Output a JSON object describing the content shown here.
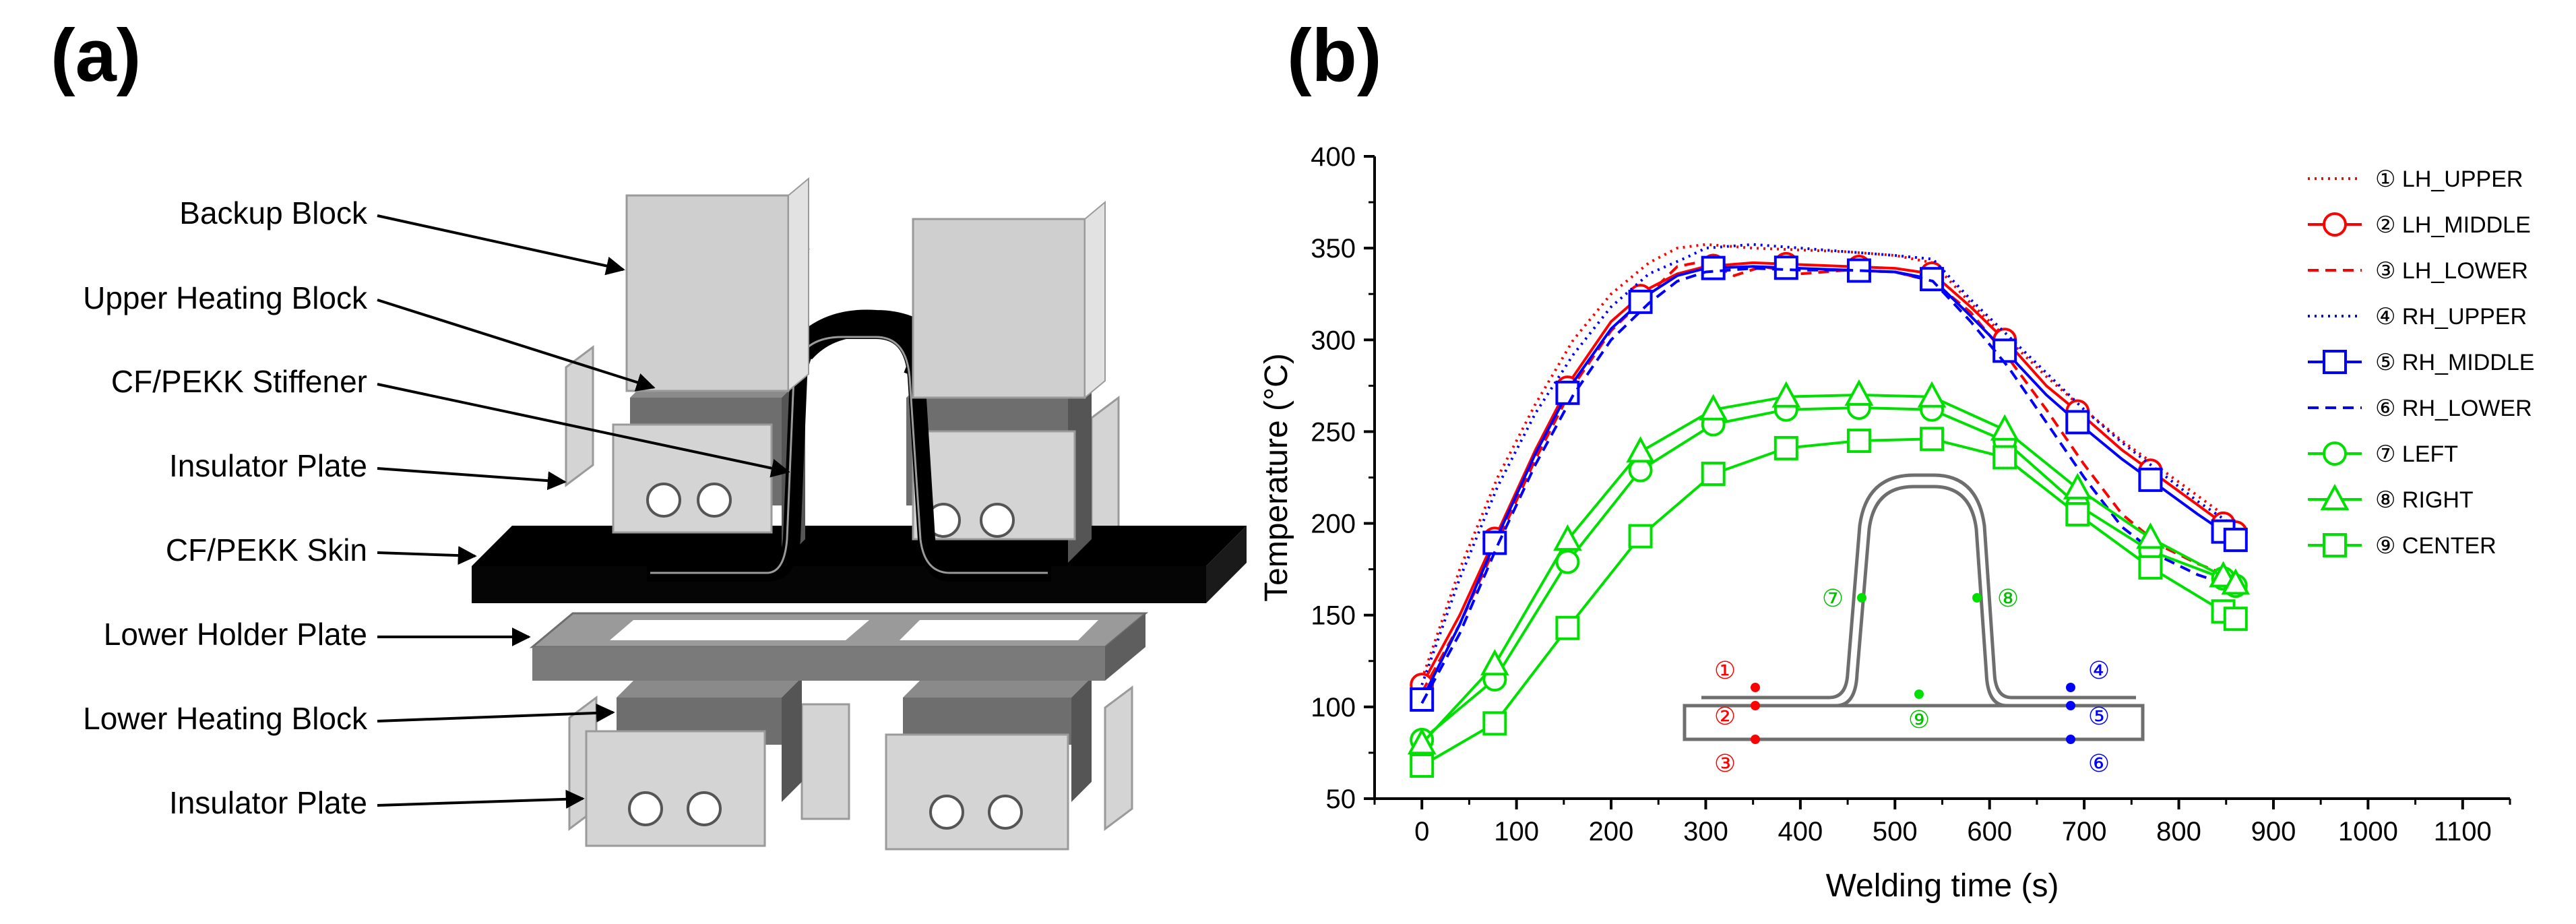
{
  "panel_a": {
    "label": "(a)",
    "callouts": [
      "Backup Block",
      "Upper Heating Block",
      "CF/PEKK Stiffener",
      "Insulator Plate",
      "CF/PEKK Skin",
      "Lower Holder Plate",
      "Lower Heating Block",
      "Insulator Plate"
    ]
  },
  "panel_b": {
    "label": "(b)",
    "inset_labels": [
      "①",
      "②",
      "③",
      "④",
      "⑤",
      "⑥",
      "⑦",
      "⑧",
      "⑨"
    ]
  },
  "colors": {
    "red": "#ff0000",
    "blue": "#0000ff",
    "green": "#00e000",
    "grey_dark": "#6e6e6e",
    "grey_mid": "#9a9a9a",
    "grey_light": "#d4d4d4",
    "black": "#000000"
  },
  "chart_data": {
    "type": "line",
    "title": "",
    "xlabel": "Welding time (s)",
    "ylabel": "Temperature (°C)",
    "xlim": [
      -50,
      1150
    ],
    "ylim": [
      50,
      400
    ],
    "xticks": [
      0,
      100,
      200,
      300,
      400,
      500,
      600,
      700,
      800,
      900,
      1000,
      1100
    ],
    "yticks": [
      50,
      100,
      150,
      200,
      250,
      300,
      350,
      400
    ],
    "grid": false,
    "legend_position": "right",
    "series": [
      {
        "name": "① LH_UPPER",
        "color": "#ff0000",
        "dash": "dotted",
        "marker": "none",
        "x": [
          0,
          40,
          80,
          120,
          160,
          200,
          240,
          270,
          300,
          350,
          400,
          450,
          500,
          540,
          580,
          620,
          660,
          700,
          740,
          780,
          820,
          860
        ],
        "y": [
          115,
          175,
          225,
          265,
          300,
          325,
          342,
          350,
          352,
          350,
          349,
          348,
          346,
          342,
          320,
          300,
          280,
          262,
          245,
          230,
          215,
          200
        ]
      },
      {
        "name": "② LH_MIDDLE",
        "color": "#ff0000",
        "dash": "solid",
        "marker": "circle",
        "x": [
          0,
          40,
          80,
          120,
          160,
          200,
          240,
          270,
          300,
          350,
          400,
          450,
          500,
          540,
          580,
          620,
          660,
          700,
          740,
          780,
          820,
          860
        ],
        "y": [
          112,
          150,
          195,
          240,
          280,
          310,
          328,
          336,
          340,
          342,
          341,
          340,
          339,
          336,
          318,
          298,
          275,
          258,
          240,
          225,
          210,
          195
        ]
      },
      {
        "name": "③ LH_LOWER",
        "color": "#ff0000",
        "dash": "dashed",
        "marker": "none",
        "x": [
          0,
          40,
          80,
          120,
          160,
          200,
          240,
          270,
          300,
          330,
          360,
          400,
          450,
          500,
          540,
          580,
          620,
          660,
          700,
          740,
          780,
          820,
          860
        ],
        "y": [
          108,
          145,
          190,
          235,
          275,
          305,
          325,
          340,
          343,
          335,
          340,
          336,
          338,
          337,
          332,
          315,
          290,
          262,
          232,
          205,
          188,
          178,
          170
        ]
      },
      {
        "name": "④ RH_UPPER",
        "color": "#0000ff",
        "dash": "dotted",
        "marker": "none",
        "x": [
          0,
          40,
          80,
          120,
          160,
          200,
          240,
          280,
          300,
          350,
          400,
          450,
          500,
          540,
          580,
          620,
          660,
          700,
          740,
          780,
          820,
          860
        ],
        "y": [
          112,
          170,
          220,
          260,
          292,
          318,
          336,
          345,
          350,
          352,
          350,
          348,
          346,
          344,
          322,
          302,
          282,
          262,
          244,
          228,
          212,
          198
        ]
      },
      {
        "name": "⑤ RH_MIDDLE",
        "color": "#0000ff",
        "dash": "solid",
        "marker": "square",
        "x": [
          0,
          40,
          80,
          120,
          160,
          200,
          240,
          270,
          300,
          350,
          400,
          450,
          500,
          540,
          580,
          620,
          660,
          700,
          740,
          780,
          820,
          860
        ],
        "y": [
          104,
          145,
          193,
          238,
          277,
          306,
          325,
          335,
          339,
          340,
          339,
          338,
          337,
          333,
          313,
          292,
          270,
          252,
          235,
          220,
          205,
          191
        ]
      },
      {
        "name": "⑥ RH_LOWER",
        "color": "#0000ff",
        "dash": "dashed",
        "marker": "none",
        "x": [
          0,
          40,
          80,
          120,
          160,
          200,
          240,
          270,
          300,
          350,
          400,
          450,
          500,
          540,
          580,
          620,
          660,
          700,
          740,
          780,
          820,
          860
        ],
        "y": [
          102,
          140,
          188,
          232,
          270,
          300,
          320,
          332,
          337,
          339,
          338,
          338,
          337,
          332,
          310,
          285,
          255,
          225,
          198,
          182,
          172,
          165
        ]
      },
      {
        "name": "⑦ LEFT",
        "color": "#00e000",
        "dash": "solid",
        "marker": "circle",
        "x": [
          0,
          77,
          154,
          231,
          308,
          385,
          462,
          539,
          616,
          693,
          770,
          847,
          860
        ],
        "y": [
          82,
          115,
          179,
          229,
          254,
          262,
          263,
          262,
          245,
          210,
          185,
          170,
          166
        ]
      },
      {
        "name": "⑧ RIGHT",
        "color": "#00e000",
        "dash": "solid",
        "marker": "triangle",
        "x": [
          0,
          77,
          154,
          231,
          308,
          385,
          462,
          539,
          616,
          693,
          770,
          847,
          860
        ],
        "y": [
          80,
          123,
          191,
          239,
          262,
          269,
          270,
          269,
          251,
          219,
          192,
          171,
          167
        ]
      },
      {
        "name": "⑨ CENTER",
        "color": "#00e000",
        "dash": "solid",
        "marker": "square",
        "x": [
          0,
          77,
          154,
          231,
          308,
          385,
          462,
          539,
          616,
          693,
          770,
          847,
          860
        ],
        "y": [
          68,
          91,
          143,
          193,
          227,
          241,
          245,
          246,
          236,
          205,
          176,
          152,
          148
        ]
      }
    ]
  }
}
